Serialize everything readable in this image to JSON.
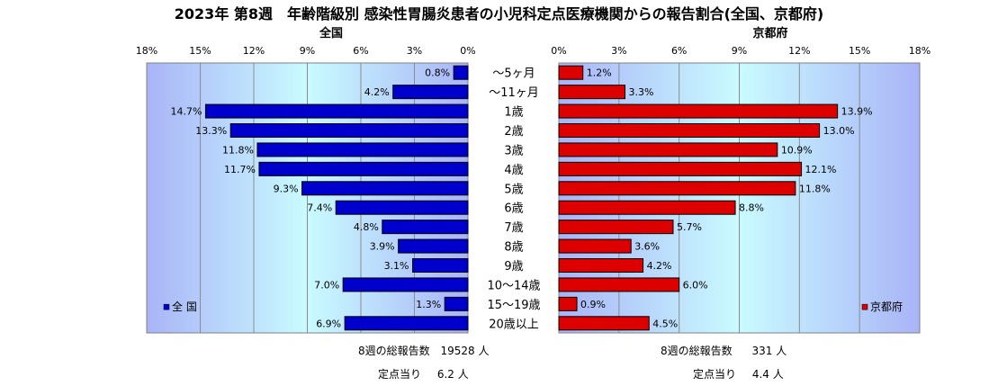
{
  "title": "2023年 第8週　年齢階級別 感染性胃腸炎患者の小児科定点医療機関からの報告割合(全国、京都府)",
  "panels": {
    "left_title": "全国",
    "right_title": "京都府",
    "left_legend": "全 国",
    "right_legend": "京都府"
  },
  "colors": {
    "left_bar": "#0000cc",
    "right_bar": "#dd0000",
    "plot_bg_edge": "#a9b4f7",
    "plot_bg_center": "#c9fbff"
  },
  "chart_data": {
    "type": "bar",
    "orientation": "horizontal-back-to-back",
    "categories": [
      "～5ヶ月",
      "～11ヶ月",
      "1歳",
      "2歳",
      "3歳",
      "4歳",
      "5歳",
      "6歳",
      "7歳",
      "8歳",
      "9歳",
      "10～14歳",
      "15～19歳",
      "20歳以上"
    ],
    "series": [
      {
        "name": "全 国",
        "values": [
          0.8,
          4.2,
          14.7,
          13.3,
          11.8,
          11.7,
          9.3,
          7.4,
          4.8,
          3.9,
          3.1,
          7.0,
          1.3,
          6.9
        ]
      },
      {
        "name": "京都府",
        "values": [
          1.2,
          3.3,
          13.9,
          13.0,
          10.9,
          12.1,
          11.8,
          8.8,
          5.7,
          3.6,
          4.2,
          6.0,
          0.9,
          4.5
        ]
      }
    ],
    "xlim": [
      0,
      18
    ],
    "ticks": [
      0,
      3,
      6,
      9,
      12,
      15,
      18
    ],
    "tick_labels": [
      "0%",
      "3%",
      "6%",
      "9%",
      "12%",
      "15%",
      "18%"
    ],
    "grid": true,
    "legend_position": "bottom-left / bottom-right"
  },
  "footer": {
    "left": {
      "total_label": "8週の総報告数",
      "total_value": "19528 人",
      "per_label": "定点当り",
      "per_value": "6.2 人"
    },
    "right": {
      "total_label": "8週の総報告数",
      "total_value": "331 人",
      "per_label": "定点当り",
      "per_value": "4.4 人"
    }
  }
}
